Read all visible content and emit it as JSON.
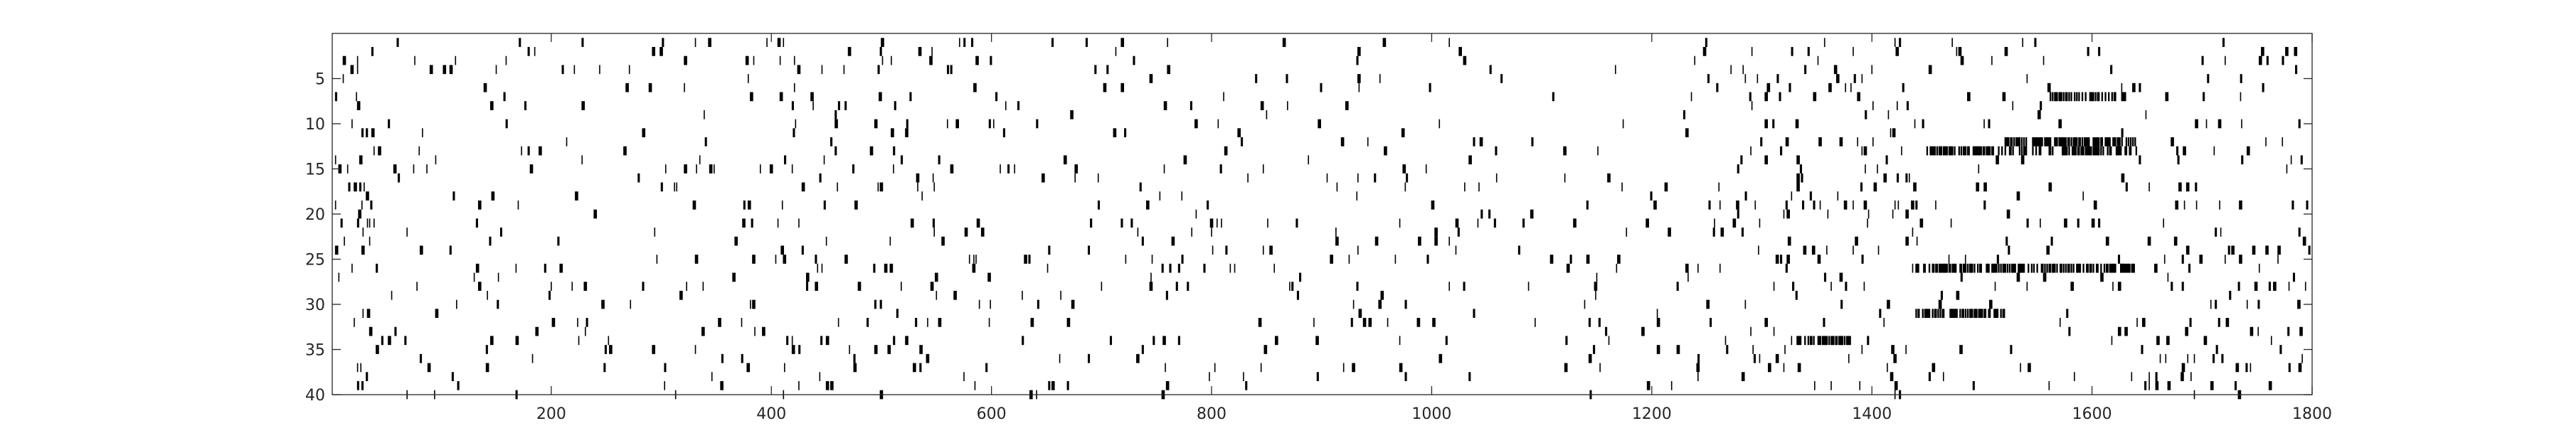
{
  "chart_data": {
    "type": "heatmap",
    "subtype": "raster",
    "title": "",
    "xlabel": "",
    "ylabel": "",
    "xlim": [
      1,
      1800
    ],
    "ylim": [
      40,
      0
    ],
    "y_direction": "reverse",
    "x_ticks": [
      200,
      400,
      600,
      800,
      1000,
      1200,
      1400,
      1600,
      1800
    ],
    "x_tick_labels": [
      "200",
      "400",
      "600",
      "800",
      "1000",
      "1200",
      "1400",
      "1600",
      "1800"
    ],
    "y_ticks": [
      5,
      10,
      15,
      20,
      25,
      30,
      35,
      40
    ],
    "y_tick_labels": [
      "5",
      "10",
      "15",
      "20",
      "25",
      "30",
      "35",
      "40"
    ],
    "grid": false,
    "legend": "none",
    "colors": {
      "mark": "#000000",
      "background": "#ffffff",
      "axis": "#262626"
    },
    "value_encoding": "binary: 1 = event (black), 0 = none (white)",
    "rows": 40,
    "columns": 1800,
    "dense_segments": [
      {
        "row": 12,
        "x_start": 1520,
        "x_end": 1640
      },
      {
        "row": 13,
        "x_start": 1450,
        "x_end": 1640
      },
      {
        "row": 26,
        "x_start": 1440,
        "x_end": 1640
      },
      {
        "row": 7,
        "x_start": 1560,
        "x_end": 1630
      },
      {
        "row": 31,
        "x_start": 1440,
        "x_end": 1520
      },
      {
        "row": 34,
        "x_start": 1330,
        "x_end": 1380
      }
    ]
  }
}
